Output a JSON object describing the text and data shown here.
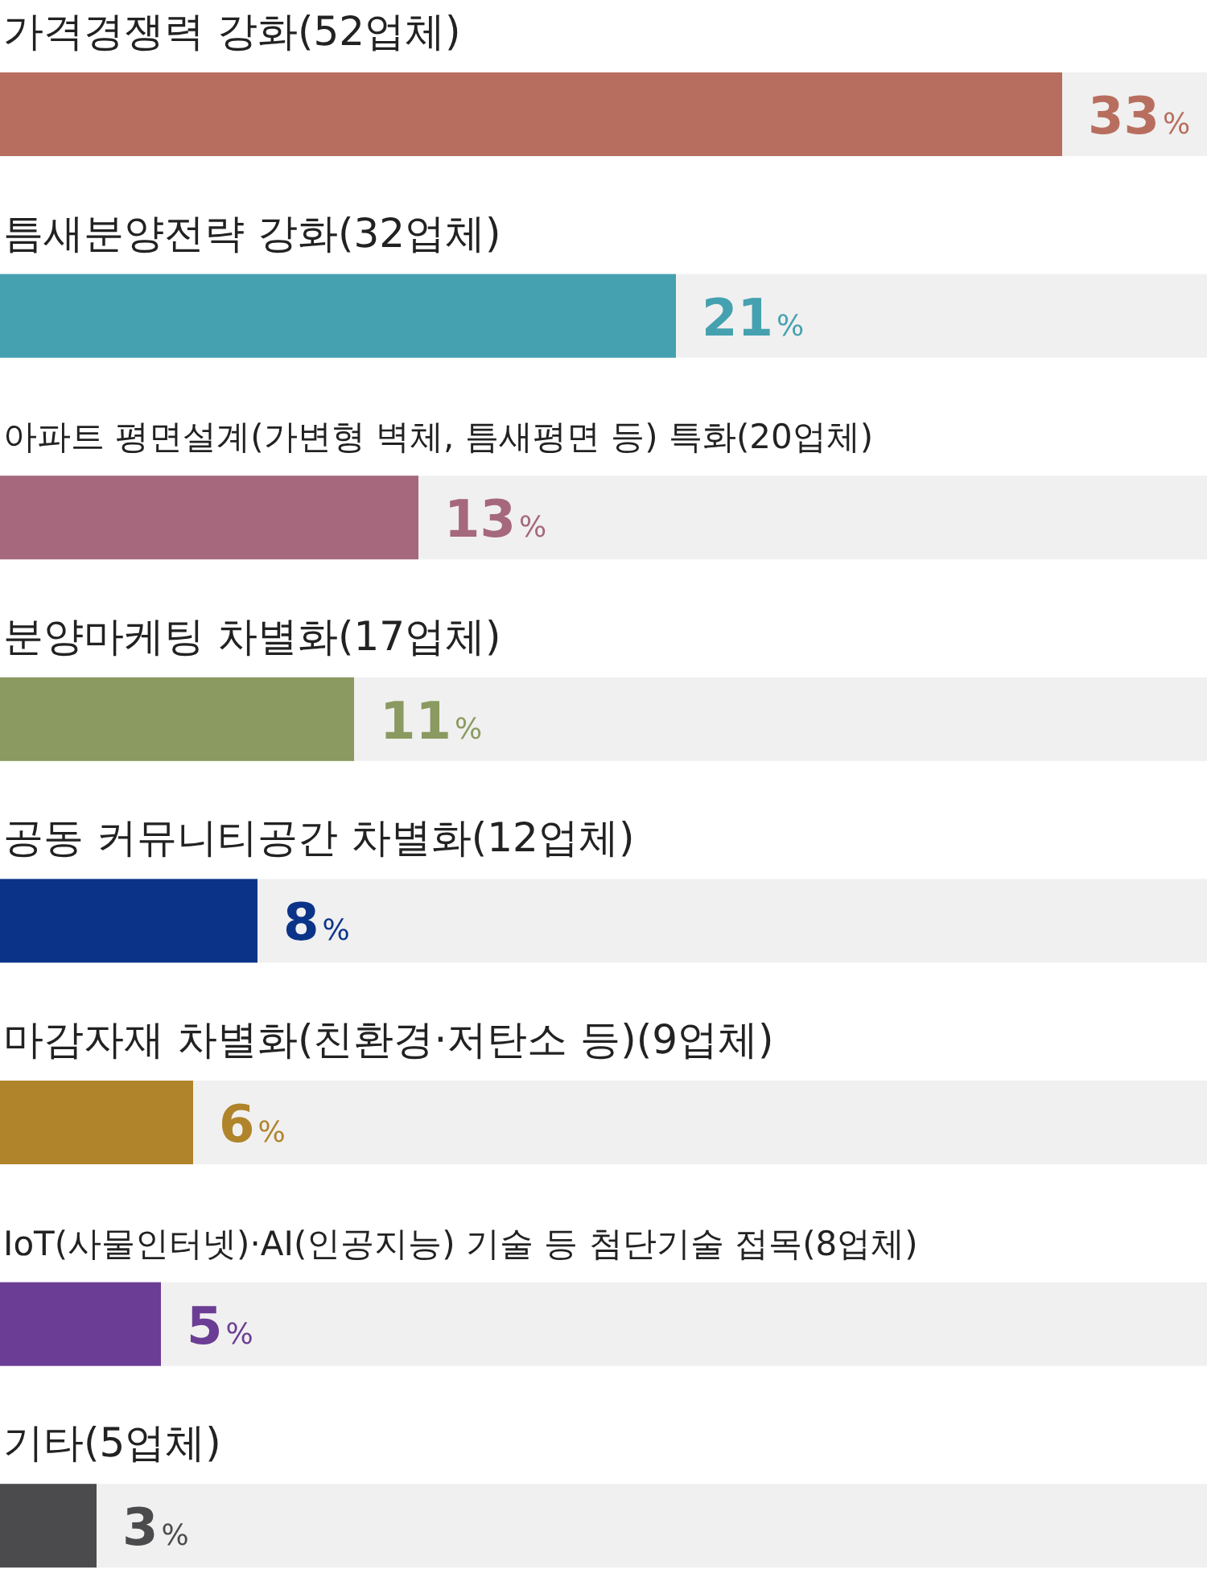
{
  "chart_data": {
    "type": "bar",
    "orientation": "horizontal",
    "categories": [
      "가격경쟁력 강화(52업체)",
      "틈새분양전략 강화(32업체)",
      "아파트 평면설계(가변형 벽체, 틈새평면 등) 특화(20업체)",
      "분양마케팅 차별화(17업체)",
      "공동 커뮤니티공간 차별화(12업체)",
      "마감자재 차별화(친환경·저탄소 등)(9업체)",
      "IoT(사물인터넷)·AI(인공지능) 기술 등 첨단기술 접목(8업체)",
      "기타(5업체)"
    ],
    "values": [
      33,
      21,
      13,
      11,
      8,
      6,
      5,
      3
    ],
    "colors": [
      "#b86e5e",
      "#45a1b0",
      "#a5687c",
      "#8a9a60",
      "#0b3489",
      "#b0842a",
      "#6b3d94",
      "#4b4a4d"
    ],
    "value_labels": [
      "33%",
      "21%",
      "13%",
      "11%",
      "8%",
      "6%",
      "5%",
      "3%"
    ],
    "xlim": [
      0,
      37.5
    ]
  }
}
